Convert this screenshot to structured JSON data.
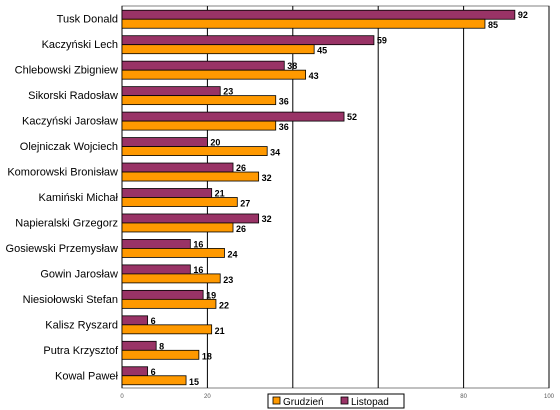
{
  "chart_data": {
    "type": "bar",
    "orientation": "horizontal",
    "categories": [
      "Tusk Donald",
      "Kaczyński Lech",
      "Chlebowski Zbigniew",
      "Sikorski Radosław",
      "Kaczyński Jarosław",
      "Olejniczak Wojciech",
      "Komorowski Bronisław",
      "Kamiński Michał",
      "Napieralski Grzegorz",
      "Gosiewski Przemysław",
      "Gowin Jarosław",
      "Niesiołowski Stefan",
      "Kalisz Ryszard",
      "Putra Krzysztof",
      "Kowal Paweł"
    ],
    "series": [
      {
        "name": "Listopad",
        "color": "#993366",
        "values": [
          92,
          59,
          38,
          23,
          52,
          20,
          26,
          21,
          32,
          16,
          16,
          19,
          6,
          8,
          6
        ]
      },
      {
        "name": "Grudzień",
        "color": "#FF9900",
        "values": [
          85,
          45,
          43,
          36,
          36,
          34,
          32,
          27,
          26,
          24,
          23,
          22,
          21,
          18,
          15
        ]
      }
    ],
    "xlim": [
      0,
      100
    ],
    "x_ticks": [
      "0",
      "20",
      "40",
      "60",
      "80",
      "100"
    ],
    "grid": true,
    "legend": {
      "position": "bottom-right",
      "entries": [
        "Grudzień",
        "Listopad"
      ]
    }
  }
}
